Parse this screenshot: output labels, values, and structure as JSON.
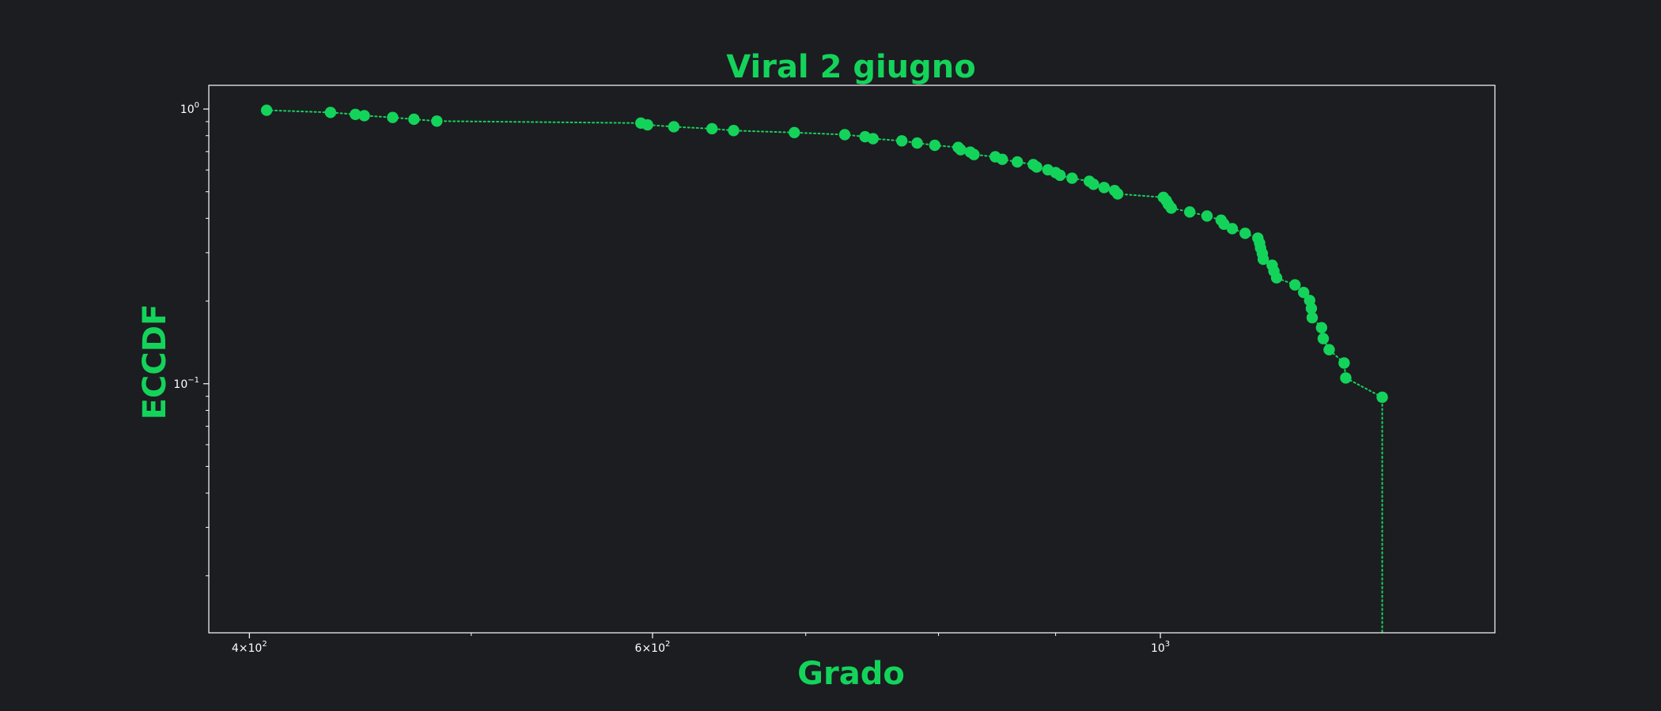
{
  "colors": {
    "background": "#1c1d21",
    "accent": "#14d35a",
    "axes": "#ffffff",
    "tick_text": "#ffffff"
  },
  "chart_data": {
    "type": "scatter",
    "title": "Viral 2 giugno",
    "xlabel": "Grado",
    "ylabel": "ECCDF",
    "xscale": "log",
    "yscale": "log",
    "xlim": [
      384,
      1400
    ],
    "ylim": [
      0.0124,
      1.22
    ],
    "grid": false,
    "line_style": "dotted",
    "marker": "circle",
    "x_ticks": [
      {
        "value": 400,
        "base": "4",
        "exp": "2",
        "mult": true
      },
      {
        "value": 600,
        "base": "6",
        "exp": "2",
        "mult": true
      },
      {
        "value": 1000,
        "base": "10",
        "exp": "3",
        "mult": false
      }
    ],
    "x_minor_ticks": [
      500,
      700,
      800,
      900
    ],
    "y_ticks": [
      {
        "value": 1,
        "base": "10",
        "exp": "0"
      },
      {
        "value": 0.1,
        "base": "10",
        "exp": "−1"
      }
    ],
    "y_minor_ticks": [
      0.02,
      0.03,
      0.04,
      0.05,
      0.06,
      0.07,
      0.08,
      0.09,
      0.2,
      0.3,
      0.4,
      0.5,
      0.6,
      0.7,
      0.8,
      0.9
    ],
    "points": [
      [
        407,
        0.99
      ],
      [
        434,
        0.972
      ],
      [
        445,
        0.956
      ],
      [
        449,
        0.946
      ],
      [
        462,
        0.932
      ],
      [
        472,
        0.918
      ],
      [
        483,
        0.904
      ],
      [
        593,
        0.889
      ],
      [
        597,
        0.876
      ],
      [
        613,
        0.862
      ],
      [
        637,
        0.848
      ],
      [
        651,
        0.835
      ],
      [
        692,
        0.821
      ],
      [
        728,
        0.807
      ],
      [
        743,
        0.793
      ],
      [
        749,
        0.78
      ],
      [
        771,
        0.766
      ],
      [
        783,
        0.752
      ],
      [
        797,
        0.738
      ],
      [
        816,
        0.725
      ],
      [
        818,
        0.711
      ],
      [
        826,
        0.697
      ],
      [
        829,
        0.683
      ],
      [
        847,
        0.67
      ],
      [
        853,
        0.656
      ],
      [
        866,
        0.642
      ],
      [
        880,
        0.628
      ],
      [
        883,
        0.615
      ],
      [
        893,
        0.601
      ],
      [
        900,
        0.587
      ],
      [
        904,
        0.574
      ],
      [
        915,
        0.56
      ],
      [
        931,
        0.546
      ],
      [
        935,
        0.532
      ],
      [
        945,
        0.518
      ],
      [
        955,
        0.505
      ],
      [
        958,
        0.491
      ],
      [
        1003,
        0.477
      ],
      [
        1006,
        0.464
      ],
      [
        1008,
        0.45
      ],
      [
        1011,
        0.436
      ],
      [
        1030,
        0.422
      ],
      [
        1048,
        0.408
      ],
      [
        1063,
        0.394
      ],
      [
        1066,
        0.381
      ],
      [
        1075,
        0.367
      ],
      [
        1089,
        0.353
      ],
      [
        1103,
        0.339
      ],
      [
        1105,
        0.325
      ],
      [
        1106,
        0.312
      ],
      [
        1108,
        0.298
      ],
      [
        1109,
        0.284
      ],
      [
        1119,
        0.27
      ],
      [
        1121,
        0.257
      ],
      [
        1124,
        0.243
      ],
      [
        1145,
        0.229
      ],
      [
        1155,
        0.215
      ],
      [
        1162,
        0.201
      ],
      [
        1164,
        0.188
      ],
      [
        1165,
        0.174
      ],
      [
        1176,
        0.16
      ],
      [
        1178,
        0.146
      ],
      [
        1185,
        0.133
      ],
      [
        1203,
        0.119
      ],
      [
        1205,
        0.105
      ],
      [
        1250,
        0.0893
      ]
    ],
    "line_tail": [
      1250,
      0.0124
    ]
  }
}
